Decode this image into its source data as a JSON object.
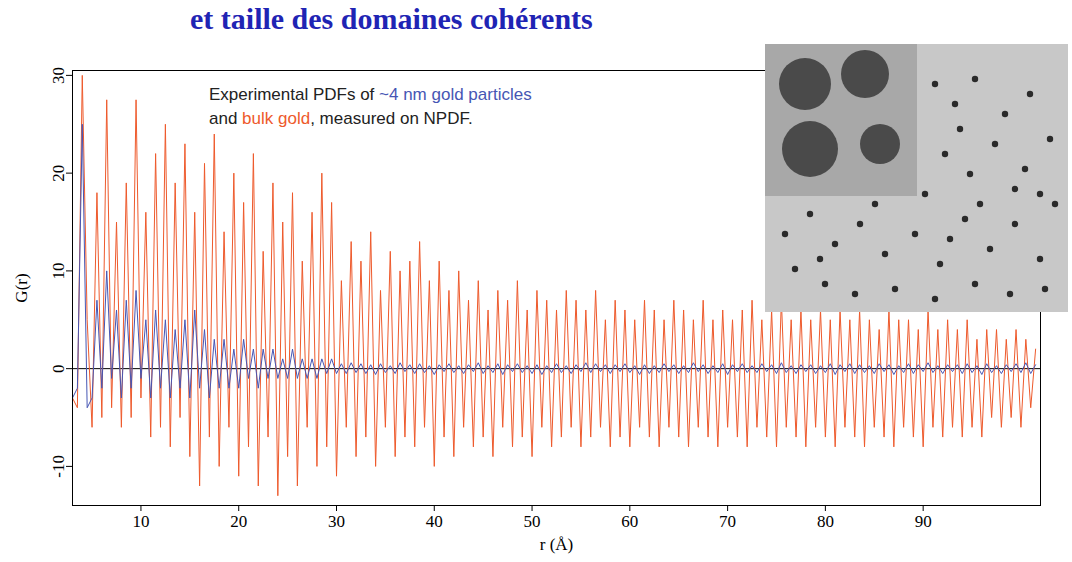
{
  "chart_data": {
    "type": "line",
    "title": "et taille des domaines cohérents",
    "x_label": "r (Å)",
    "y_label": "G(r)",
    "annotation": [
      [
        "Experimental PDFs of ",
        "~4 nm gold particles"
      ],
      [
        "and ",
        "bulk gold",
        ", measured on NPDF."
      ]
    ],
    "xlim": [
      3,
      102
    ],
    "xticks": [
      10,
      20,
      30,
      40,
      50,
      60,
      70,
      80,
      90
    ],
    "ylim": [
      -14,
      30.5
    ],
    "yticks": [
      -10,
      0,
      10,
      20,
      30
    ],
    "reference_lines": [
      0
    ],
    "x": [
      3,
      3.5,
      4,
      4.5,
      5,
      5.5,
      6,
      6.5,
      7,
      7.5,
      8,
      8.5,
      9,
      9.5,
      10,
      10.5,
      11,
      11.5,
      12,
      12.5,
      13,
      13.5,
      14,
      14.5,
      15,
      15.5,
      16,
      16.5,
      17,
      17.5,
      18,
      18.5,
      19,
      19.5,
      20,
      20.5,
      21,
      21.5,
      22,
      22.5,
      23,
      23.5,
      24,
      24.5,
      25,
      25.5,
      26,
      26.5,
      27,
      27.5,
      28,
      28.5,
      29,
      29.5,
      30,
      30.5,
      31,
      31.5,
      32,
      32.5,
      33,
      33.5,
      34,
      34.5,
      35,
      35.5,
      36,
      36.5,
      37,
      37.5,
      38,
      38.5,
      39,
      39.5,
      40,
      40.5,
      41,
      41.5,
      42,
      42.5,
      43,
      43.5,
      44,
      44.5,
      45,
      45.5,
      46,
      46.5,
      47,
      47.5,
      48,
      48.5,
      49,
      49.5,
      50,
      50.5,
      51,
      51.5,
      52,
      52.5,
      53,
      53.5,
      54,
      54.5,
      55,
      55.5,
      56,
      56.5,
      57,
      57.5,
      58,
      58.5,
      59,
      59.5,
      60,
      60.5,
      61,
      61.5,
      62,
      62.5,
      63,
      63.5,
      64,
      64.5,
      65,
      65.5,
      66,
      66.5,
      67,
      67.5,
      68,
      68.5,
      69,
      69.5,
      70,
      70.5,
      71,
      71.5,
      72,
      72.5,
      73,
      73.5,
      74,
      74.5,
      75,
      75.5,
      76,
      76.5,
      77,
      77.5,
      78,
      78.5,
      79,
      79.5,
      80,
      80.5,
      81,
      81.5,
      82,
      82.5,
      83,
      83.5,
      84,
      84.5,
      85,
      85.5,
      86,
      86.5,
      87,
      87.5,
      88,
      88.5,
      89,
      89.5,
      90,
      90.5,
      91,
      91.5,
      92,
      92.5,
      93,
      93.5,
      94,
      94.5,
      95,
      95.5,
      96,
      96.5,
      97,
      97.5,
      98,
      98.5,
      99,
      99.5,
      100,
      100.5,
      101,
      101.5
    ],
    "series": [
      {
        "name": "bulk gold",
        "color": "#ee5a2c",
        "values": [
          -3,
          -4,
          30,
          5,
          -6,
          18,
          -5,
          27.5,
          -4,
          15,
          -6,
          19,
          -5,
          27.5,
          -3,
          16,
          -7,
          22,
          -6,
          25,
          -8,
          19,
          -5,
          23,
          -9,
          16,
          -12,
          21,
          -7,
          24,
          -10,
          14,
          -6,
          20,
          -11,
          17,
          -8,
          22,
          -12,
          12,
          -7,
          19,
          -13,
          15,
          -9,
          18,
          -12,
          11,
          -6,
          16,
          -10,
          20,
          -8,
          17,
          -11,
          9,
          -6,
          13,
          -9,
          11,
          -7,
          14,
          -10,
          8,
          -6,
          12,
          -9,
          10,
          -7,
          11,
          -8,
          13,
          -6,
          9,
          -10,
          11,
          -7,
          8,
          -9,
          10,
          -6,
          7,
          -8,
          9,
          -7,
          6,
          -9,
          8,
          -6,
          7,
          -8,
          9,
          -7,
          6,
          -9,
          8,
          -6,
          7,
          -8,
          6,
          -7,
          8,
          -6,
          7,
          -8,
          6,
          -7,
          8,
          -6,
          5,
          -8,
          7,
          -7,
          6,
          -8,
          5,
          -6,
          7,
          -7,
          6,
          -8,
          5,
          -6,
          7,
          -7,
          6,
          -8,
          5,
          -6,
          7,
          -7,
          5,
          -8,
          6,
          -6,
          5,
          -7,
          6,
          -8,
          7,
          -6,
          5,
          -7,
          6,
          -8,
          7,
          -6,
          5,
          -7,
          6,
          -8,
          5,
          -6,
          6,
          -7,
          5,
          -8,
          6,
          -6,
          5,
          -7,
          6,
          -8,
          5,
          -6,
          4,
          -7,
          6,
          -8,
          5,
          -6,
          5,
          -7,
          4,
          -8,
          6,
          -6,
          4,
          -7,
          5,
          -6,
          4,
          -7,
          5,
          -6,
          3,
          -7,
          4,
          -5,
          4,
          -6,
          3,
          -5,
          4,
          -6,
          3,
          -4,
          2
        ]
      },
      {
        "name": "~4 nm gold particles",
        "color": "#4656b4",
        "values": [
          -3,
          -2,
          25,
          -4,
          -3,
          7,
          -2,
          10,
          -1,
          6,
          -3,
          7,
          -2,
          8,
          -1,
          5,
          -3,
          6,
          -2,
          5,
          -3,
          4,
          -2,
          5,
          -3,
          6,
          -2,
          4,
          -3,
          3,
          -2,
          3,
          -2,
          2,
          -2,
          3,
          -1,
          2,
          -2,
          2,
          -1,
          2,
          -1,
          1,
          -1,
          2,
          -1,
          1,
          -1,
          1,
          -1,
          1,
          -0.5,
          1,
          -0.5,
          0.5,
          -0.5,
          0.6,
          -0.4,
          0.5,
          -0.5,
          0.4,
          -0.6,
          0.5,
          -0.4,
          0.3,
          -0.5,
          0.6,
          -0.3,
          0.4,
          -0.5,
          0.5,
          -0.4,
          0.3,
          -0.6,
          0.4,
          -0.3,
          0.5,
          -0.4,
          0.3,
          -0.5,
          0.4,
          -0.3,
          0.6,
          -0.5,
          0.3,
          -0.4,
          0.5,
          -0.6,
          0.4,
          -0.3,
          0.5,
          -0.4,
          0.3,
          -0.5,
          0.4,
          -0.6,
          0.3,
          -0.4,
          0.5,
          -0.4,
          0.3,
          -0.5,
          0.4,
          -0.3,
          0.6,
          -0.4,
          0.5,
          -0.3,
          0.4,
          -0.5,
          0.4,
          -0.3,
          0.5,
          -0.4,
          0.3,
          -0.6,
          0.4,
          -0.5,
          0.3,
          -0.4,
          0.5,
          -0.3,
          0.4,
          -0.5,
          0.3,
          -0.4,
          0.6,
          -0.3,
          0.4,
          -0.5,
          0.3,
          -0.4,
          0.5,
          -0.6,
          0.4,
          -0.3,
          0.5,
          -0.4,
          0.3,
          -0.4,
          0.5,
          -0.3,
          0.4,
          -0.5,
          0.6,
          -0.4,
          0.3,
          -0.5,
          0.4,
          -0.3,
          0.4,
          -0.5,
          0.3,
          -0.4,
          0.5,
          -0.6,
          0.4,
          -0.3,
          0.5,
          -0.5,
          0.4,
          -0.4,
          0.3,
          -0.5,
          0.5,
          -0.3,
          0.4,
          -0.6,
          0.3,
          -0.4,
          0.5,
          -0.5,
          0.4,
          -0.3,
          0.6,
          -0.4,
          0.3,
          -0.5,
          0.4,
          -0.3,
          0.4,
          -0.5,
          0.5,
          -0.4,
          0.3,
          -0.6,
          0.5,
          -0.4,
          0.3,
          -0.5,
          0.4,
          -0.3,
          0.5,
          -0.4,
          0.6,
          -0.5,
          0.4
        ]
      }
    ]
  }
}
